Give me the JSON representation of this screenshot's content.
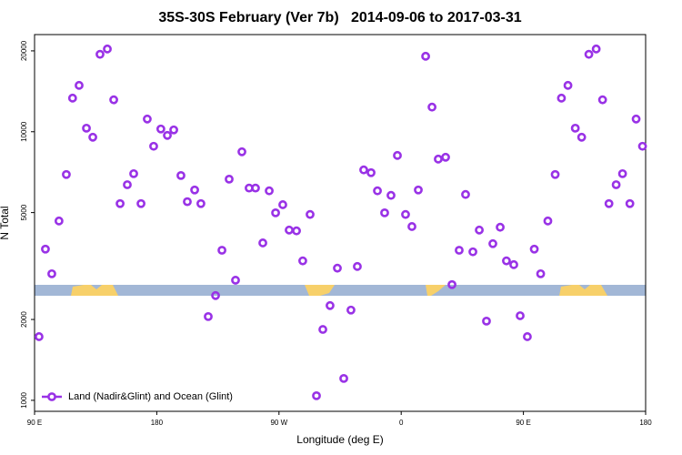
{
  "chart_data": {
    "type": "scatter",
    "title": "35S-30S February (Ver 7b)   2014-09-06 to 2017-03-31",
    "x_label": "Longitude (deg E)",
    "y_label": "N Total",
    "log_y": true,
    "legend_position": "lower left",
    "series": [
      {
        "name": "Land (Nadir&Glint) and Ocean (Glint)",
        "color": "#9932e6",
        "x": [
          93.3,
          98,
          102.7,
          108,
          113.4,
          118,
          122.8,
          128.2,
          132.9,
          138.2,
          143.6,
          148.3,
          153,
          158.3,
          163,
          168.4,
          173,
          177.7,
          183,
          187.8,
          192.5,
          197.8,
          202.5,
          207.9,
          212.5,
          217.9,
          223.3,
          228,
          233.3,
          238,
          242.7,
          248,
          252.7,
          258.1,
          262.8,
          267.5,
          272.8,
          277.5,
          282.9,
          287.5,
          292.9,
          297.6,
          302.3,
          307.6,
          313,
          317.7,
          323,
          327.7,
          332.4,
          337.8,
          342.5,
          347.8,
          352.5,
          357.2,
          363.2,
          367.9,
          372.6,
          378,
          382.7,
          387.3,
          392.7,
          397.4,
          402.7,
          407.4,
          412.8,
          417.5,
          422.8,
          427.5,
          432.9,
          437.5,
          442.9,
          447.6,
          452.9,
          458,
          462.7,
          468,
          473.4,
          478,
          482.8,
          488.2,
          492.9,
          498.2,
          503.6,
          508.3,
          513,
          518.3,
          523,
          528.4,
          533,
          537.7
        ],
        "values": [
          1726,
          3655,
          2959,
          4653,
          6930,
          13340,
          14880,
          10310,
          9540,
          19420,
          20330,
          13150,
          5400,
          6350,
          6980,
          5400,
          11150,
          8830,
          10240,
          9690,
          10160,
          6870,
          5490,
          6070,
          5400,
          2050,
          2455,
          3620,
          6660,
          2800,
          8420,
          6170,
          6170,
          3855,
          6025,
          4990,
          5350,
          4305,
          4275,
          3305,
          4920,
          1040,
          1836,
          2253,
          3105,
          1206,
          2168,
          3150,
          7210,
          7040,
          6025,
          4990,
          5795,
          8160,
          4920,
          4436,
          6070,
          19100,
          12350,
          7910,
          8035,
          2697,
          3620,
          5840,
          3572,
          4305,
          1972,
          3830,
          4410,
          3305,
          3200,
          2065,
          1726,
          3655,
          2959,
          4653,
          6930,
          13340,
          14880,
          10310,
          9540,
          19420,
          20330,
          13150,
          5400,
          6350,
          6980,
          5400,
          11150,
          8830
        ]
      }
    ],
    "xlim": [
      90,
      540
    ],
    "xticks": [
      {
        "value": 90,
        "label": "90 E"
      },
      180,
      {
        "value": 270,
        "label": "90 W"
      },
      {
        "value": 360,
        "label": "0"
      },
      {
        "value": 450,
        "label": "90 E"
      },
      {
        "value": 540,
        "label": "180"
      }
    ],
    "ylim": [
      910,
      23000
    ],
    "yticks": [
      1000,
      2000,
      5000,
      10000,
      20000
    ]
  }
}
